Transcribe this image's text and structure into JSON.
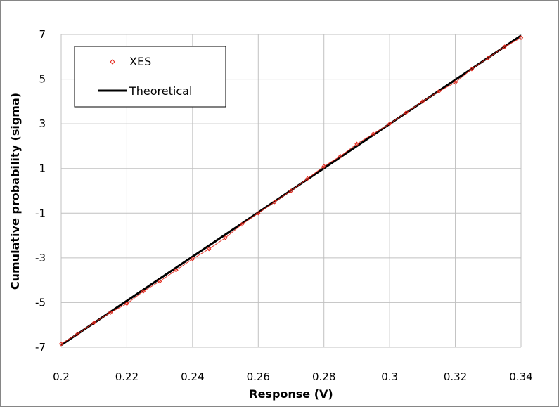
{
  "chart_data": {
    "type": "scatter",
    "title": "",
    "xlabel": "Response (V)",
    "ylabel": "Cumulative probability (sigma)",
    "xlim": [
      0.2,
      0.34
    ],
    "ylim": [
      -7,
      7
    ],
    "xticks": [
      0.2,
      0.22,
      0.24,
      0.26,
      0.28,
      0.3,
      0.32,
      0.34
    ],
    "yticks": [
      -7,
      -5,
      -3,
      -1,
      1,
      3,
      5,
      7
    ],
    "xtick_labels": [
      "0.2",
      "0.22",
      "0.24",
      "0.26",
      "0.28",
      "0.3",
      "0.32",
      "0.34"
    ],
    "ytick_labels": [
      "-7",
      "-5",
      "-3",
      "-1",
      "1",
      "3",
      "5",
      "7"
    ],
    "grid": true,
    "legend_position": "top-left",
    "series": [
      {
        "name": "XES",
        "kind": "markers",
        "marker": "diamond-open",
        "color": "#e3261a",
        "x": [
          0.2,
          0.205,
          0.21,
          0.215,
          0.22,
          0.225,
          0.23,
          0.235,
          0.24,
          0.245,
          0.25,
          0.255,
          0.26,
          0.265,
          0.27,
          0.275,
          0.28,
          0.285,
          0.29,
          0.295,
          0.3,
          0.305,
          0.31,
          0.315,
          0.32,
          0.325,
          0.33,
          0.335,
          0.34
        ],
        "y": [
          -6.85,
          -6.4,
          -5.9,
          -5.45,
          -5.05,
          -4.5,
          -4.05,
          -3.55,
          -3.05,
          -2.6,
          -2.1,
          -1.5,
          -1.0,
          -0.5,
          0.0,
          0.55,
          1.1,
          1.55,
          2.1,
          2.55,
          3.0,
          3.5,
          4.0,
          4.45,
          4.85,
          5.45,
          5.95,
          6.45,
          6.85
        ]
      },
      {
        "name": "Theoretical",
        "kind": "line",
        "color": "#000000",
        "x": [
          0.2,
          0.34
        ],
        "y": [
          -6.9,
          6.95
        ]
      }
    ]
  },
  "legend": {
    "items": [
      {
        "label": "XES",
        "color": "#e3261a"
      },
      {
        "label": "Theoretical",
        "color": "#000000"
      }
    ]
  },
  "colors": {
    "grid": "#c0c0c0",
    "frame": "#868686"
  }
}
